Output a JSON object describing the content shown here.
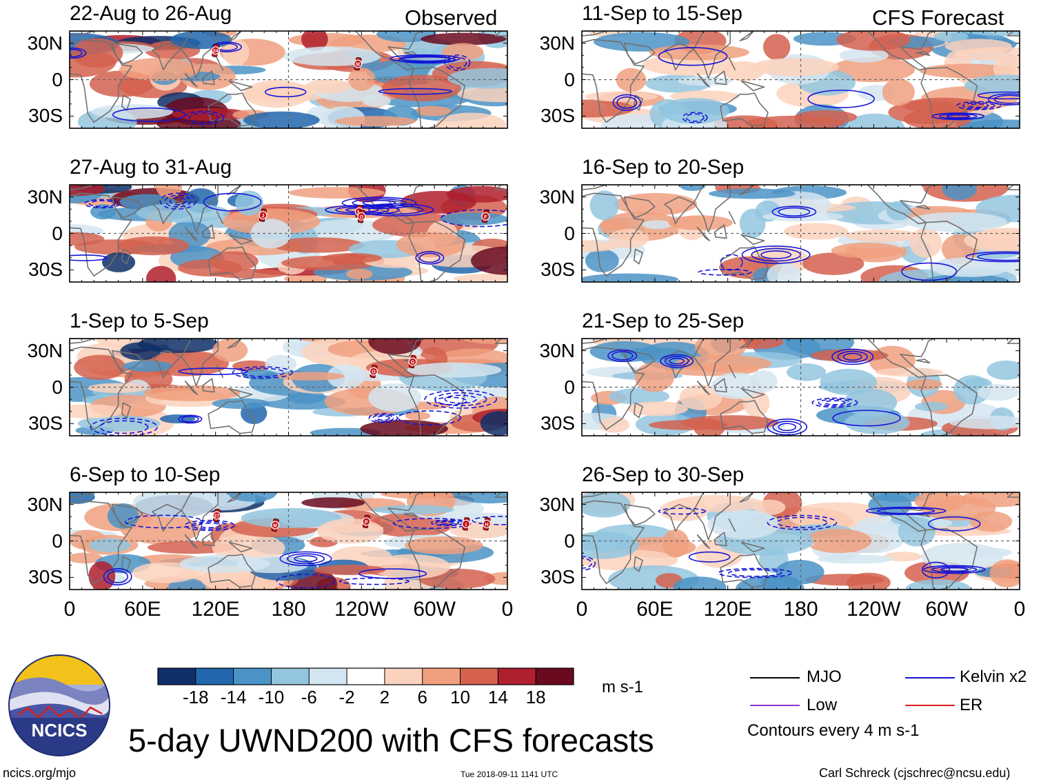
{
  "title": "5-day UWND200 with CFS forecasts",
  "site": "ncics.org/mjo",
  "timestamp": "Tue 2018-09-11 1141 UTC",
  "author": "Carl Schreck (cjschrec@ncsu.edu)",
  "logo_text": "NCICS",
  "section_labels": {
    "observed": "Observed",
    "forecast": "CFS Forecast"
  },
  "units": "m s-1",
  "contour_note": "Contours every 4 m s-1",
  "legend": [
    {
      "label": "MJO",
      "color": "#000000"
    },
    {
      "label": "Kelvin x2",
      "color": "#1515d6"
    },
    {
      "label": "Low",
      "color": "#8a35c8"
    },
    {
      "label": "ER",
      "color": "#e01c1c"
    }
  ],
  "chart_data": {
    "type": "heatmap",
    "variable": "200-hPa zonal wind anomaly",
    "lat_labels": [
      "30N",
      "0",
      "30S"
    ],
    "lat_values": [
      30,
      0,
      -30
    ],
    "lon_labels": [
      "0",
      "60E",
      "120E",
      "180",
      "120W",
      "60W",
      "0"
    ],
    "lon_values": [
      0,
      60,
      120,
      180,
      240,
      300,
      360
    ],
    "colorbar": {
      "ticks": [
        "-18",
        "-14",
        "-10",
        "-6",
        "-2",
        "2",
        "6",
        "10",
        "14",
        "18"
      ],
      "colors": [
        "#0e2f68",
        "#2266ad",
        "#4b93c6",
        "#93c5df",
        "#d3e5f0",
        "#ffffff",
        "#fbd2bd",
        "#f0a07f",
        "#d4624f",
        "#b01f2d",
        "#6a0a1e"
      ]
    },
    "panels": [
      {
        "title": "22-Aug to 26-Aug",
        "type": "observed",
        "storms": [
          {
            "label": "24",
            "lon": 120,
            "lat": 24
          },
          {
            "label": "M",
            "lon": 237,
            "lat": 13
          }
        ]
      },
      {
        "title": "27-Aug to 31-Aug",
        "type": "observed",
        "storms": [
          {
            "label": "J",
            "lon": 159,
            "lat": 15
          },
          {
            "label": "N",
            "lon": 238,
            "lat": 18
          },
          {
            "label": "O",
            "lon": 240,
            "lat": 14
          },
          {
            "label": "F",
            "lon": 342,
            "lat": 14
          }
        ]
      },
      {
        "title": "1-Sep to 5-Sep",
        "type": "observed",
        "storms": [
          {
            "label": "O",
            "lon": 250,
            "lat": 13
          },
          {
            "label": "G",
            "lon": 282,
            "lat": 21
          }
        ]
      },
      {
        "title": "6-Sep to 10-Sep",
        "type": "observed",
        "storms": [
          {
            "label": "27",
            "lon": 121,
            "lat": 21
          },
          {
            "label": "M",
            "lon": 169,
            "lat": 13
          },
          {
            "label": "P",
            "lon": 244,
            "lat": 16
          },
          {
            "label": "I",
            "lon": 326,
            "lat": 14
          },
          {
            "label": "H",
            "lon": 343,
            "lat": 14
          }
        ]
      },
      {
        "title": "11-Sep to 15-Sep",
        "type": "forecast",
        "storms": []
      },
      {
        "title": "16-Sep to 20-Sep",
        "type": "forecast",
        "storms": []
      },
      {
        "title": "21-Sep to 25-Sep",
        "type": "forecast",
        "storms": []
      },
      {
        "title": "26-Sep to 30-Sep",
        "type": "forecast",
        "storms": []
      }
    ]
  }
}
